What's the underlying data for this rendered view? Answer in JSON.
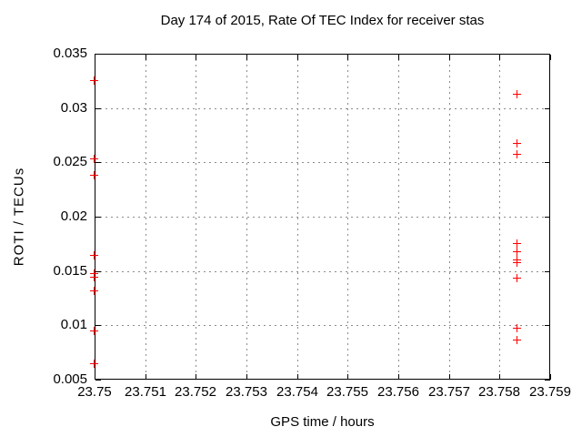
{
  "page": {
    "title": "Day 174 of 2015, Rate Of TEC Index for receiver stas"
  },
  "chart_data": {
    "type": "scatter",
    "title": "Day 174 of 2015, Rate Of TEC Index for receiver stas",
    "xlabel": "GPS time / hours",
    "ylabel": "ROTI / TECUs",
    "xlim": [
      23.75,
      23.759
    ],
    "ylim": [
      0.005,
      0.035
    ],
    "grid": true,
    "legend": false,
    "marker": {
      "symbol": "plus",
      "color": "#ff0000"
    },
    "grid_color": "#8c8c8c",
    "axis_color": "#000000",
    "background_color": "#ffffff",
    "x_ticks": [
      {
        "value": 23.75,
        "label": "23.75"
      },
      {
        "value": 23.751,
        "label": "23.751"
      },
      {
        "value": 23.752,
        "label": "23.752"
      },
      {
        "value": 23.753,
        "label": "23.753"
      },
      {
        "value": 23.754,
        "label": "23.754"
      },
      {
        "value": 23.755,
        "label": "23.755"
      },
      {
        "value": 23.756,
        "label": "23.756"
      },
      {
        "value": 23.757,
        "label": "23.757"
      },
      {
        "value": 23.758,
        "label": "23.758"
      },
      {
        "value": 23.759,
        "label": "23.759"
      }
    ],
    "y_ticks": [
      {
        "value": 0.005,
        "label": "0.005"
      },
      {
        "value": 0.01,
        "label": "0.01"
      },
      {
        "value": 0.015,
        "label": "0.015"
      },
      {
        "value": 0.02,
        "label": "0.02"
      },
      {
        "value": 0.025,
        "label": "0.025"
      },
      {
        "value": 0.03,
        "label": "0.03"
      },
      {
        "value": 0.035,
        "label": "0.035"
      }
    ],
    "series": [
      {
        "name": "ROTI",
        "points": [
          [
            23.75,
            0.0325
          ],
          [
            23.75,
            0.0253
          ],
          [
            23.75,
            0.0238
          ],
          [
            23.75,
            0.0164
          ],
          [
            23.75,
            0.0147
          ],
          [
            23.75,
            0.0144
          ],
          [
            23.75,
            0.0131
          ],
          [
            23.75,
            0.0094
          ],
          [
            23.75,
            0.0064
          ],
          [
            23.75836,
            0.0312
          ],
          [
            23.75836,
            0.0267
          ],
          [
            23.75836,
            0.0257
          ],
          [
            23.75836,
            0.0175
          ],
          [
            23.75836,
            0.0167
          ],
          [
            23.75836,
            0.016
          ],
          [
            23.75836,
            0.0157
          ],
          [
            23.75836,
            0.0143
          ],
          [
            23.75836,
            0.0097
          ],
          [
            23.75836,
            0.0086
          ]
        ]
      }
    ]
  }
}
